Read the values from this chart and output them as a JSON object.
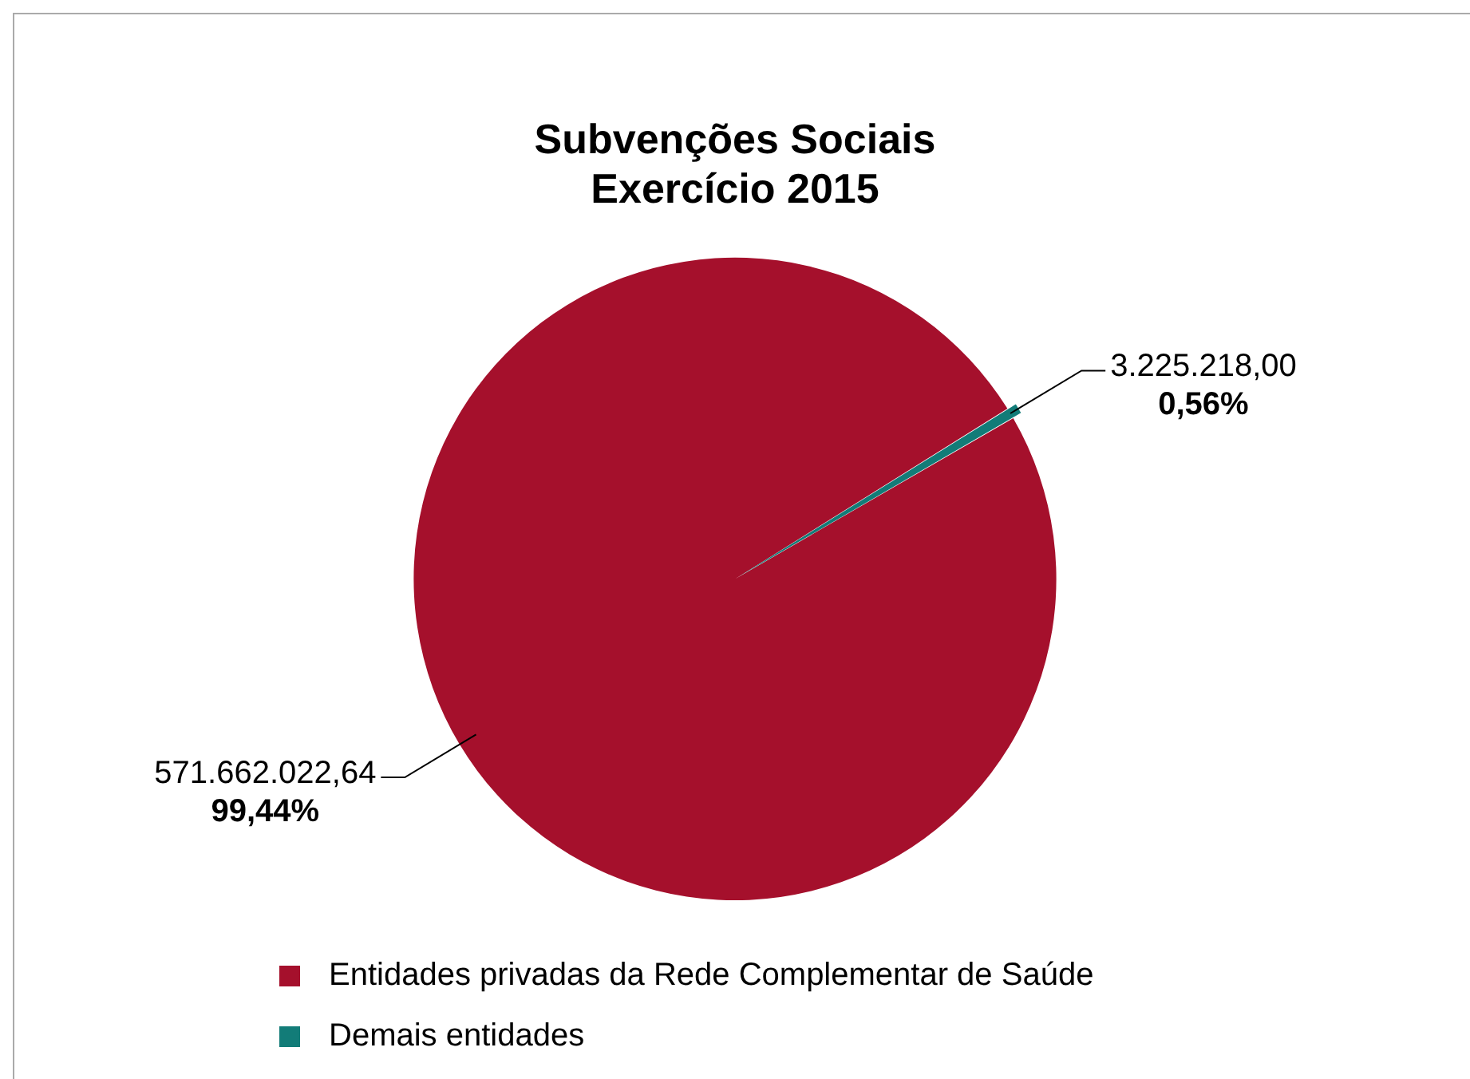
{
  "chart_data": {
    "type": "pie",
    "title": "Subvenções Sociais\nExercício 2015",
    "categories": [
      "Entidades privadas da Rede Complementar de Saúde",
      "Demais entidades"
    ],
    "values": [
      571662022.64,
      3225218.0
    ],
    "value_labels": [
      "571.662.022,64\n99,44%",
      "3.225.218,00\n0,56%"
    ],
    "colors": [
      "#a5102c",
      "#127c78"
    ],
    "legend": "bottom"
  }
}
